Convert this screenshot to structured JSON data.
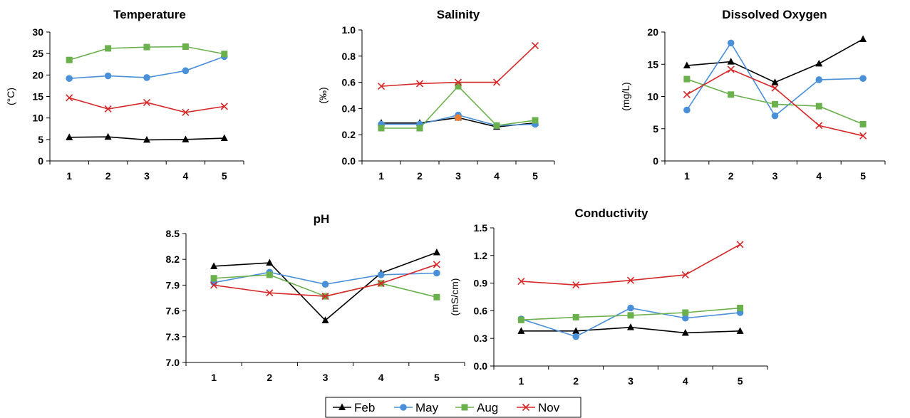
{
  "chart_data": [
    {
      "type": "line",
      "title": "Temperature",
      "ylabel": "(°C)",
      "xlabel": "",
      "categories": [
        "1",
        "2",
        "3",
        "4",
        "5"
      ],
      "ylim": [
        0,
        30
      ],
      "yticks": [
        "0",
        "5",
        "10",
        "15",
        "20",
        "25",
        "30"
      ],
      "series": [
        {
          "name": "Feb",
          "values": [
            5.5,
            5.6,
            4.9,
            5.0,
            5.3
          ]
        },
        {
          "name": "May",
          "values": [
            19.2,
            19.8,
            19.4,
            21.0,
            24.3
          ]
        },
        {
          "name": "Aug",
          "values": [
            23.5,
            26.2,
            26.5,
            26.6,
            24.9
          ]
        },
        {
          "name": "Nov",
          "values": [
            14.7,
            12.1,
            13.6,
            11.3,
            12.7
          ]
        }
      ]
    },
    {
      "type": "line",
      "title": "Salinity",
      "ylabel": "(‰)",
      "xlabel": "",
      "categories": [
        "1",
        "2",
        "3",
        "4",
        "5"
      ],
      "ylim": [
        0,
        1.0
      ],
      "yticks": [
        "0.0",
        "0.2",
        "0.4",
        "0.6",
        "0.8",
        "1.0"
      ],
      "series": [
        {
          "name": "Feb",
          "values": [
            0.29,
            0.29,
            0.33,
            0.26,
            0.29
          ]
        },
        {
          "name": "May",
          "values": [
            0.28,
            0.28,
            0.35,
            0.27,
            0.28
          ]
        },
        {
          "name": "Aug",
          "values": [
            0.25,
            0.25,
            0.57,
            0.27,
            0.31
          ]
        },
        {
          "name": "Nov",
          "values": [
            0.57,
            0.59,
            0.6,
            0.6,
            0.88
          ]
        }
      ]
    },
    {
      "type": "line",
      "title": "Dissolved Oxygen",
      "ylabel": "(mg/L)",
      "xlabel": "",
      "categories": [
        "1",
        "2",
        "3",
        "4",
        "5"
      ],
      "ylim": [
        0,
        20
      ],
      "yticks": [
        "0",
        "5",
        "10",
        "15",
        "20"
      ],
      "series": [
        {
          "name": "Feb",
          "values": [
            14.8,
            15.4,
            12.2,
            15.1,
            18.9
          ]
        },
        {
          "name": "May",
          "values": [
            7.9,
            18.3,
            7.0,
            12.6,
            12.8
          ]
        },
        {
          "name": "Aug",
          "values": [
            12.7,
            10.3,
            8.8,
            8.5,
            5.7
          ]
        },
        {
          "name": "Nov",
          "values": [
            10.3,
            14.2,
            11.3,
            5.5,
            3.9
          ]
        }
      ]
    },
    {
      "type": "line",
      "title": "pH",
      "ylabel": "",
      "xlabel": "",
      "categories": [
        "1",
        "2",
        "3",
        "4",
        "5"
      ],
      "ylim": [
        7.0,
        8.5
      ],
      "yticks": [
        "7.0",
        "7.3",
        "7.6",
        "7.9",
        "8.2",
        "8.5"
      ],
      "series": [
        {
          "name": "Feb",
          "values": [
            8.12,
            8.16,
            7.49,
            8.04,
            8.28
          ]
        },
        {
          "name": "May",
          "values": [
            7.93,
            8.05,
            7.91,
            8.02,
            8.04
          ]
        },
        {
          "name": "Aug",
          "values": [
            7.98,
            8.02,
            7.77,
            7.92,
            7.76
          ]
        },
        {
          "name": "Nov",
          "values": [
            7.9,
            7.81,
            7.77,
            7.92,
            8.14
          ]
        }
      ]
    },
    {
      "type": "line",
      "title": "Conductivity",
      "ylabel": "(mS/cm)",
      "xlabel": "",
      "categories": [
        "1",
        "2",
        "3",
        "4",
        "5"
      ],
      "ylim": [
        0,
        1.5
      ],
      "yticks": [
        "0.0",
        "0.3",
        "0.6",
        "0.9",
        "1.2",
        "1.5"
      ],
      "series": [
        {
          "name": "Feb",
          "values": [
            0.38,
            0.38,
            0.42,
            0.36,
            0.38
          ]
        },
        {
          "name": "May",
          "values": [
            0.51,
            0.32,
            0.63,
            0.52,
            0.58
          ]
        },
        {
          "name": "Aug",
          "values": [
            0.5,
            0.53,
            0.55,
            0.58,
            0.63
          ]
        },
        {
          "name": "Nov",
          "values": [
            0.92,
            0.88,
            0.93,
            0.99,
            1.32
          ]
        }
      ]
    }
  ],
  "legend": {
    "position": "bottom-center",
    "entries": [
      {
        "label": "Feb",
        "color": "#000000",
        "marker": "triangle"
      },
      {
        "label": "May",
        "color": "#4a90d9",
        "marker": "circle"
      },
      {
        "label": "Aug",
        "color": "#6ab04c",
        "marker": "square"
      },
      {
        "label": "Nov",
        "color": "#d62728",
        "marker": "x"
      }
    ]
  },
  "extra_markers": [
    {
      "chart": 1,
      "series_color": "#ed7d31",
      "category": "3",
      "value": 0.33
    }
  ]
}
